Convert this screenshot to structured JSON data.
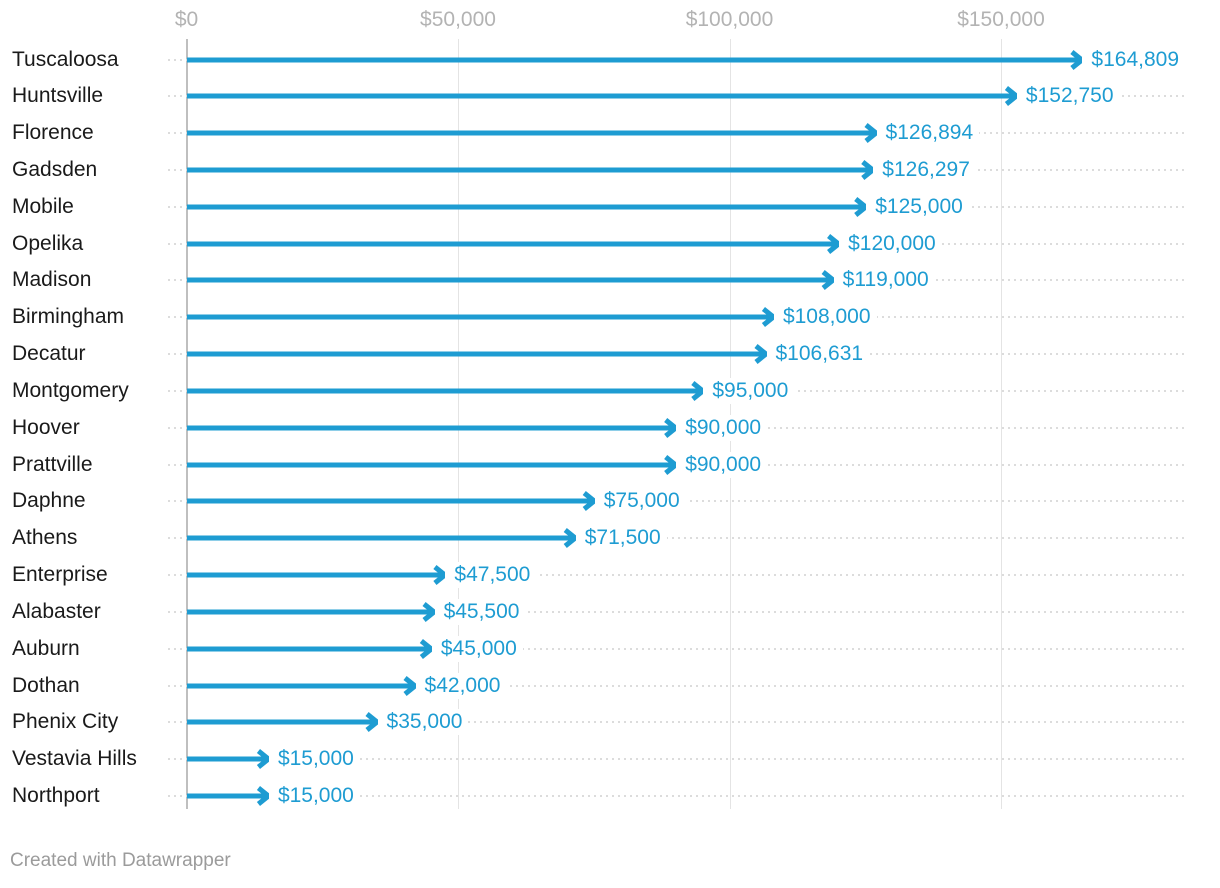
{
  "chart_data": {
    "type": "bar",
    "subtype": "arrow-bar",
    "orientation": "horizontal",
    "title": "",
    "xlabel": "",
    "ylabel": "",
    "legend": "none",
    "grid": "vertical",
    "xlim": [
      0,
      184000
    ],
    "categories": [
      "Tuscaloosa",
      "Huntsville",
      "Florence",
      "Gadsden",
      "Mobile",
      "Opelika",
      "Madison",
      "Birmingham",
      "Decatur",
      "Montgomery",
      "Hoover",
      "Prattville",
      "Daphne",
      "Athens",
      "Enterprise",
      "Alabaster",
      "Auburn",
      "Dothan",
      "Phenix City",
      "Vestavia Hills",
      "Northport"
    ],
    "values": [
      164809,
      152750,
      126894,
      126297,
      125000,
      120000,
      119000,
      108000,
      106631,
      95000,
      90000,
      90000,
      75000,
      71500,
      47500,
      45500,
      45000,
      42000,
      35000,
      15000,
      15000
    ],
    "value_labels": [
      "$164,809",
      "$152,750",
      "$126,894",
      "$126,297",
      "$125,000",
      "$120,000",
      "$119,000",
      "$108,000",
      "$106,631",
      "$95,000",
      "$90,000",
      "$90,000",
      "$75,000",
      "$71,500",
      "$47,500",
      "$45,500",
      "$45,000",
      "$42,000",
      "$35,000",
      "$15,000",
      "$15,000"
    ],
    "x_ticks": [
      {
        "value": 0,
        "label": "$0"
      },
      {
        "value": 50000,
        "label": "$50,000"
      },
      {
        "value": 100000,
        "label": "$100,000"
      },
      {
        "value": 150000,
        "label": "$150,000"
      }
    ],
    "bar_color": "#1e9cd2"
  },
  "colors": {
    "accent": "#1e9cd2",
    "gridline": "#e4e4e4",
    "zero_axis": "#bfbfbf",
    "tick_label": "#b3b3b3",
    "category_label": "#1a1a1a",
    "row_dots": "#dcdcdc",
    "footer_text": "#9b9b9b",
    "background": "#ffffff"
  },
  "footer": {
    "credit": "Created with Datawrapper"
  }
}
